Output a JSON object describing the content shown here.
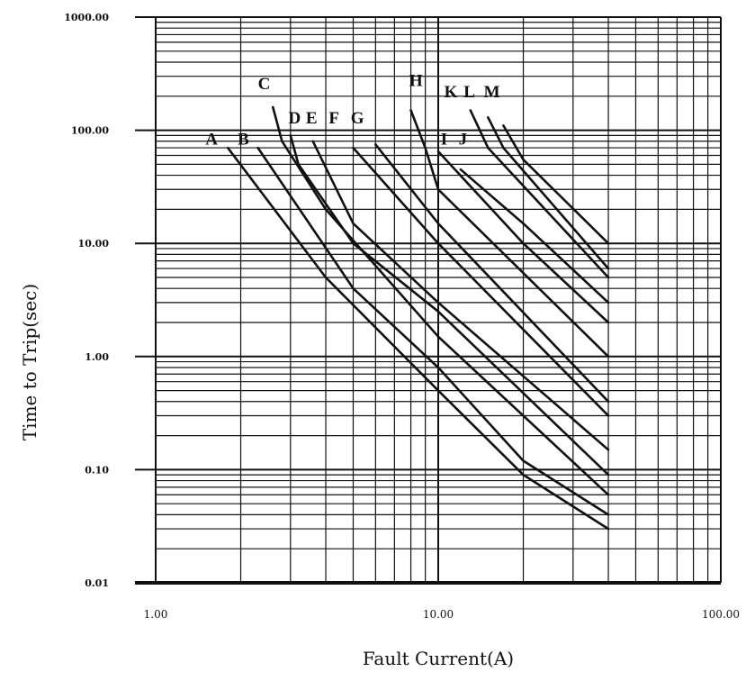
{
  "chart_data": {
    "type": "line",
    "x_scale": "log",
    "y_scale": "log",
    "xlim": [
      1,
      100
    ],
    "ylim": [
      0.01,
      1000
    ],
    "grid": true,
    "xlabel": "Fault Current(A)",
    "ylabel": "Time to Trip(sec)",
    "x_tick_labels": [
      "1.00",
      "10.00",
      "100.00"
    ],
    "y_tick_labels": [
      "1000.00",
      "100.00",
      "10.00",
      "1.00",
      "0.10",
      "0.01"
    ],
    "series": [
      {
        "name": "A",
        "points": [
          [
            1.8,
            70
          ],
          [
            4,
            5
          ],
          [
            10,
            0.5
          ],
          [
            20,
            0.09
          ],
          [
            40,
            0.03
          ]
        ]
      },
      {
        "name": "B",
        "points": [
          [
            2.3,
            70
          ],
          [
            5,
            4
          ],
          [
            10,
            0.8
          ],
          [
            20,
            0.12
          ],
          [
            40,
            0.04
          ]
        ]
      },
      {
        "name": "C",
        "points": [
          [
            2.6,
            160
          ],
          [
            2.8,
            80
          ],
          [
            4,
            20
          ],
          [
            10,
            1.5
          ],
          [
            40,
            0.06
          ]
        ]
      },
      {
        "name": "D",
        "points": [
          [
            3.0,
            90
          ],
          [
            3.2,
            50
          ],
          [
            5,
            10
          ],
          [
            10,
            2.5
          ],
          [
            40,
            0.09
          ]
        ]
      },
      {
        "name": "E",
        "points": [
          [
            3.6,
            80
          ],
          [
            5,
            15
          ],
          [
            10,
            3
          ],
          [
            40,
            0.15
          ]
        ]
      },
      {
        "name": "F",
        "points": [
          [
            5,
            70
          ],
          [
            10,
            10
          ],
          [
            40,
            0.3
          ]
        ]
      },
      {
        "name": "G",
        "points": [
          [
            6,
            75
          ],
          [
            10,
            15
          ],
          [
            40,
            0.4
          ]
        ]
      },
      {
        "name": "H",
        "points": [
          [
            8,
            150
          ],
          [
            9,
            70
          ],
          [
            10,
            30
          ],
          [
            40,
            1
          ]
        ]
      },
      {
        "name": "I",
        "points": [
          [
            10,
            65
          ],
          [
            20,
            10
          ],
          [
            40,
            2
          ]
        ]
      },
      {
        "name": "J",
        "points": [
          [
            12,
            45
          ],
          [
            20,
            15
          ],
          [
            40,
            3
          ]
        ]
      },
      {
        "name": "K",
        "points": [
          [
            13,
            150
          ],
          [
            15,
            70
          ],
          [
            40,
            5
          ]
        ]
      },
      {
        "name": "L",
        "points": [
          [
            15,
            130
          ],
          [
            17,
            70
          ],
          [
            40,
            6
          ]
        ]
      },
      {
        "name": "M",
        "points": [
          [
            17,
            110
          ],
          [
            20,
            55
          ],
          [
            40,
            10
          ]
        ]
      }
    ],
    "curve_labels": [
      {
        "text": "A",
        "x": 1.5,
        "y": 75
      },
      {
        "text": "B",
        "x": 1.95,
        "y": 75
      },
      {
        "text": "C",
        "x": 2.3,
        "y": 230
      },
      {
        "text": "D",
        "x": 2.95,
        "y": 115
      },
      {
        "text": "E",
        "x": 3.4,
        "y": 115
      },
      {
        "text": "F",
        "x": 4.1,
        "y": 115
      },
      {
        "text": "G",
        "x": 4.9,
        "y": 115
      },
      {
        "text": "H",
        "x": 7.9,
        "y": 245
      },
      {
        "text": "I",
        "x": 10.2,
        "y": 75
      },
      {
        "text": "J",
        "x": 11.8,
        "y": 75
      },
      {
        "text": "K",
        "x": 10.5,
        "y": 195
      },
      {
        "text": "L",
        "x": 12.3,
        "y": 195
      },
      {
        "text": "M",
        "x": 14.5,
        "y": 195
      }
    ],
    "colors": {
      "line": "#111111",
      "grid": "#111111",
      "background": "#ffffff"
    }
  }
}
